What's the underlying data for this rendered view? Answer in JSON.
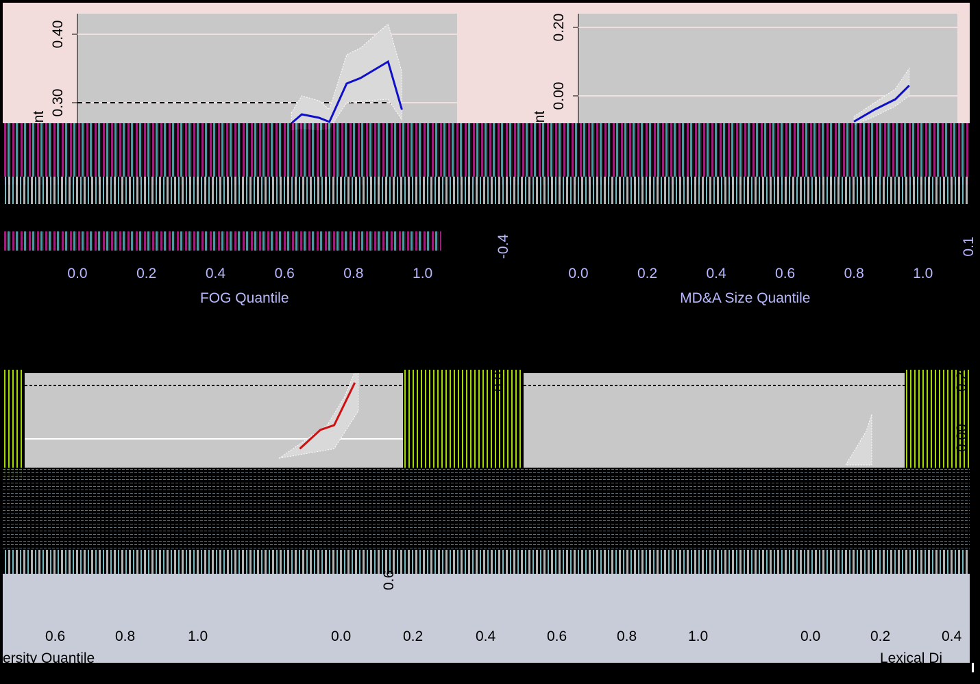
{
  "colors": {
    "page_background": "#000000",
    "top_band": "#f2dcdc",
    "panel_background": "#c8c8c8",
    "gridline": "#f0e0e0",
    "blue_line": "#1010c8",
    "red_line": "#d01010",
    "ci_band": "#d9d9d9",
    "reference_line": "#000000",
    "tick_text": "#b9b9ff"
  },
  "chart_data": [
    {
      "type": "line",
      "panel": "top-left",
      "xlabel": "FOG Quantile",
      "ylabel": "cient",
      "xticks": [
        "0.0",
        "0.2",
        "0.4",
        "0.6",
        "0.8",
        "1.0"
      ],
      "yticks": [
        "0.30",
        "0.40"
      ],
      "xlim": [
        0.0,
        1.1
      ],
      "ylim": [
        0.27,
        0.43
      ],
      "grid": true,
      "reference_line": 0.3,
      "series": [
        {
          "color": "#1010c8",
          "x": [
            0.62,
            0.65,
            0.7,
            0.73,
            0.78,
            0.82,
            0.9,
            0.94
          ],
          "y": [
            0.27,
            0.283,
            0.278,
            0.272,
            0.328,
            0.336,
            0.36,
            0.29
          ],
          "ci_lower": [
            0.26,
            0.262,
            0.26,
            0.262,
            0.3,
            0.302,
            0.305,
            0.275
          ],
          "ci_upper": [
            0.285,
            0.31,
            0.303,
            0.29,
            0.37,
            0.38,
            0.415,
            0.345
          ]
        }
      ]
    },
    {
      "type": "line",
      "panel": "top-right",
      "xlabel": "MD&A Size Quantile",
      "ylabel": "cient",
      "xticks": [
        "0.0",
        "0.2",
        "0.4",
        "0.6",
        "0.8",
        "1.0"
      ],
      "yticks": [
        "0.00",
        "0.20"
      ],
      "xlim": [
        0.0,
        1.1
      ],
      "ylim": [
        -0.08,
        0.24
      ],
      "grid": true,
      "series": [
        {
          "color": "#1010c8",
          "x": [
            0.8,
            0.86,
            0.92,
            0.96
          ],
          "y": [
            -0.075,
            -0.04,
            -0.01,
            0.03
          ],
          "ci_lower": [
            -0.085,
            -0.06,
            -0.03,
            0.0
          ],
          "ci_upper": [
            -0.06,
            -0.02,
            0.02,
            0.08
          ]
        }
      ],
      "edge_ticks": [
        "-0.4",
        "0.1"
      ]
    },
    {
      "type": "line",
      "panel": "bottom-left",
      "xlabel": "ersity Quantile",
      "xticks": [
        "0.6",
        "0.8",
        "1.0"
      ],
      "series": [
        {
          "color": "#d01010",
          "x": [
            0.8,
            0.86,
            0.9,
            0.96
          ],
          "y": [
            0.0,
            0.04,
            0.05,
            0.14
          ]
        }
      ],
      "side_ticks": [
        "0.05"
      ]
    },
    {
      "type": "line",
      "panel": "bottom-right",
      "xlabel": "Lexical Di",
      "xticks": [
        "0.0",
        "0.2",
        "0.4",
        "0.6",
        "0.8",
        "1.0",
        "0.0",
        "0.2",
        "0.4"
      ],
      "yticks": [
        "0.6"
      ],
      "side_ticks": [
        "0.20",
        "0.00"
      ]
    }
  ]
}
